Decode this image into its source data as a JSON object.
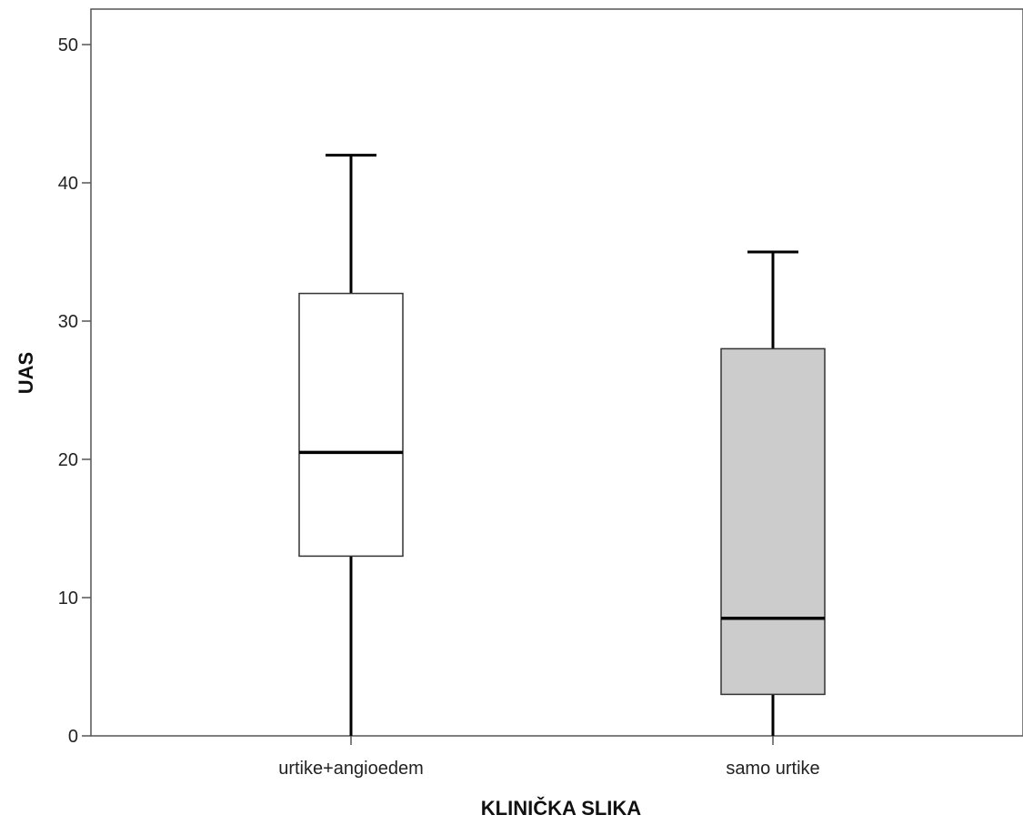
{
  "chart_data": {
    "type": "boxplot",
    "xlabel": "KLINIČKA SLIKA",
    "ylabel": "UAS",
    "ylim": [
      0,
      50
    ],
    "yticks": [
      0,
      10,
      20,
      30,
      40,
      50
    ],
    "grid": false,
    "categories": [
      "urtike+angioedem",
      "samo urtike"
    ],
    "boxes": [
      {
        "category": "urtike+angioedem",
        "min": 0,
        "q1": 13,
        "median": 20.5,
        "q3": 32,
        "max": 42,
        "fill": "#ffffff"
      },
      {
        "category": "samo urtike",
        "min": 0,
        "q1": 3,
        "median": 8.5,
        "q3": 28,
        "max": 35,
        "fill": "#cccccc"
      }
    ]
  }
}
